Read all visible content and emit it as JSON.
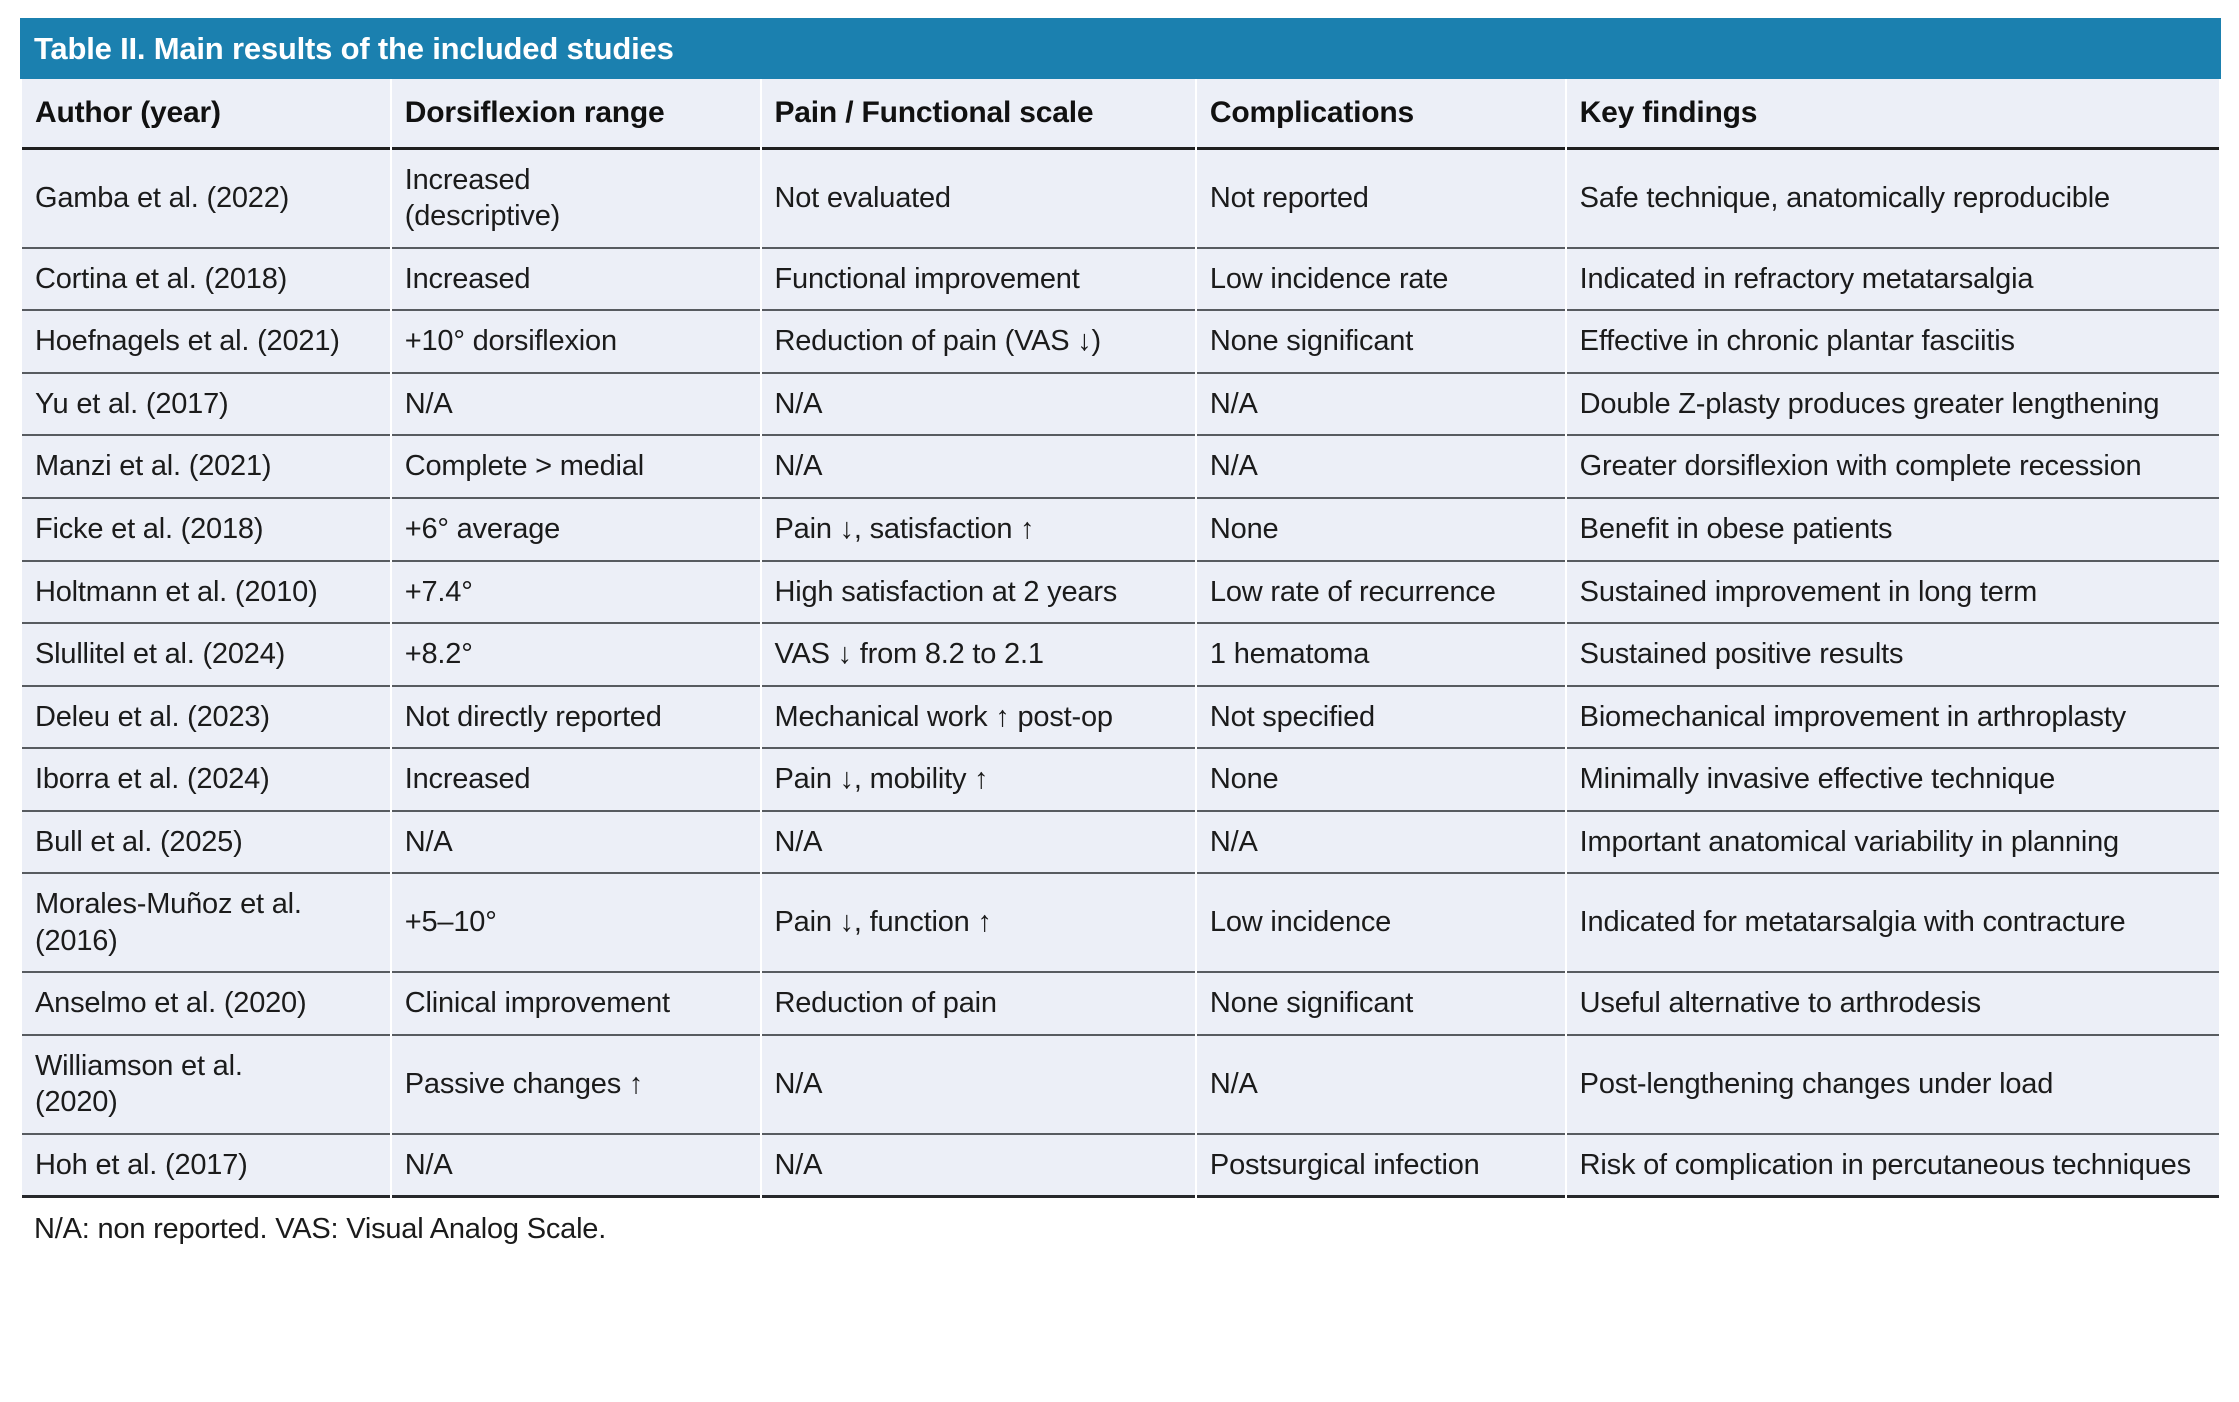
{
  "table": {
    "title": "Table II. Main results of the included studies",
    "columns": [
      "Author (year)",
      "Dorsiflexion range",
      "Pain / Functional scale",
      "Complications",
      "Key findings"
    ],
    "rows": [
      [
        "Gamba et al. (2022)",
        "Increased\n(descriptive)",
        "Not evaluated",
        "Not reported",
        "Safe technique, anatomically reproducible"
      ],
      [
        "Cortina et al. (2018)",
        "Increased",
        "Functional improvement",
        "Low incidence rate",
        "Indicated in refractory metatarsalgia"
      ],
      [
        "Hoefnagels et al. (2021)",
        "+10° dorsiflexion",
        "Reduction of pain (VAS ↓)",
        "None significant",
        "Effective in chronic plantar fasciitis"
      ],
      [
        "Yu et al. (2017)",
        "N/A",
        "N/A",
        "N/A",
        "Double Z-plasty produces greater lengthening"
      ],
      [
        "Manzi et al. (2021)",
        "Complete > medial",
        "N/A",
        "N/A",
        "Greater dorsiflexion with complete recession"
      ],
      [
        "Ficke et al. (2018)",
        "+6° average",
        "Pain ↓, satisfaction ↑",
        "None",
        "Benefit in obese patients"
      ],
      [
        "Holtmann et al. (2010)",
        "+7.4°",
        "High satisfaction at 2 years",
        "Low rate of recurrence",
        "Sustained improvement in long term"
      ],
      [
        "Slullitel et al. (2024)",
        "+8.2°",
        "VAS ↓ from 8.2 to 2.1",
        "1 hematoma",
        "Sustained positive results"
      ],
      [
        "Deleu et al. (2023)",
        "Not directly reported",
        "Mechanical work ↑ post-op",
        "Not specified",
        "Biomechanical improvement in arthroplasty"
      ],
      [
        "Iborra et al. (2024)",
        "Increased",
        "Pain ↓, mobility ↑",
        "None",
        "Minimally invasive effective technique"
      ],
      [
        "Bull et al. (2025)",
        "N/A",
        "N/A",
        "N/A",
        "Important anatomical variability in planning"
      ],
      [
        "Morales-Muñoz et al.\n(2016)",
        "+5–10°",
        "Pain ↓, function ↑",
        "Low incidence",
        "Indicated for metatarsalgia with contracture"
      ],
      [
        "Anselmo et al. (2020)",
        "Clinical improvement",
        "Reduction of pain",
        "None significant",
        "Useful alternative to arthrodesis"
      ],
      [
        "Williamson et al.\n(2020)",
        "Passive changes ↑",
        "N/A",
        "N/A",
        "Post-lengthening changes under load"
      ],
      [
        "Hoh et al. (2017)",
        "N/A",
        "N/A",
        "Postsurgical infection",
        "Risk of complication in percutaneous techniques"
      ]
    ],
    "footnote": "N/A: non reported. VAS: Visual Analog Scale."
  },
  "colors": {
    "title_bar_bg": "#1b80af",
    "title_text": "#ffffff",
    "row_bg": "#eceff7",
    "separator_line": "#575b60",
    "heavy_line": "#1f1f1f",
    "body_text": "#1b1b1b"
  }
}
